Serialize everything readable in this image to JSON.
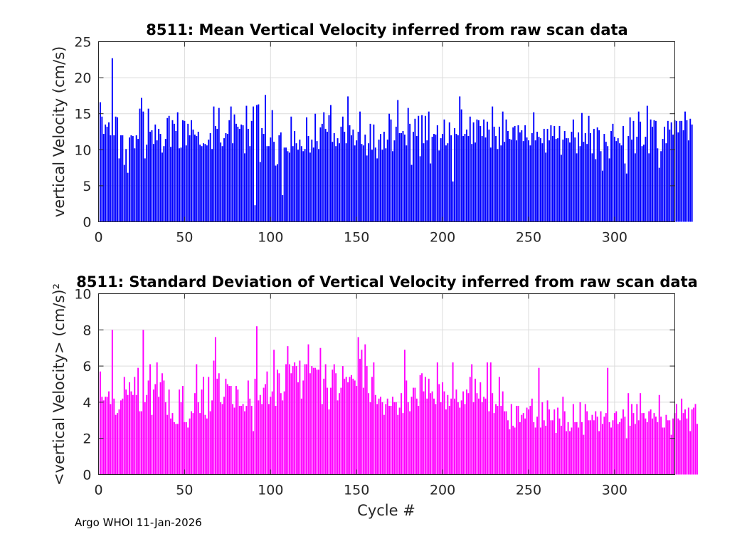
{
  "footer": "Argo WHOI 11-Jan-2026",
  "chart_data": [
    {
      "type": "bar",
      "title": "8511: Mean Vertical Velocity inferred from raw scan data",
      "xlabel": "",
      "ylabel": "vertical Velocity (cm/s)",
      "color": "#0000ff",
      "xlim": [
        0,
        335
      ],
      "ylim": [
        0,
        25
      ],
      "xticks": [
        0,
        50,
        100,
        150,
        200,
        250,
        300
      ],
      "yticks": [
        0,
        5,
        10,
        15,
        20,
        25
      ],
      "x_start": 1,
      "values": [
        16.6,
        14.6,
        12.2,
        13.5,
        13.2,
        13.8,
        12.0,
        22.7,
        12.0,
        14.6,
        14.5,
        8.8,
        12.0,
        12.0,
        7.9,
        10.1,
        6.8,
        11.7,
        12.0,
        11.9,
        10.2,
        12.0,
        11.5,
        15.7,
        17.2,
        15.3,
        8.8,
        10.7,
        15.7,
        12.5,
        12.7,
        10.8,
        13.5,
        11.3,
        12.9,
        12.2,
        9.6,
        10.5,
        11.5,
        14.4,
        14.7,
        10.4,
        14.1,
        13.6,
        12.6,
        15.2,
        10.2,
        10.3,
        14.1,
        14.0,
        10.6,
        13.6,
        12.0,
        14.1,
        12.8,
        12.1,
        11.9,
        12.5,
        10.7,
        10.5,
        10.9,
        10.8,
        10.6,
        11.4,
        12.3,
        10.1,
        16.0,
        13.3,
        12.9,
        15.8,
        11.0,
        10.5,
        11.6,
        12.3,
        12.2,
        14.1,
        16.0,
        10.9,
        14.9,
        13.6,
        13.2,
        12.9,
        13.5,
        13.4,
        9.5,
        16.1,
        12.9,
        10.5,
        14.0,
        16.0,
        2.3,
        16.2,
        16.3,
        8.3,
        13.0,
        12.2,
        17.6,
        10.5,
        10.5,
        11.7,
        15.5,
        11.1,
        7.8,
        8.0,
        12.0,
        12.4,
        3.7,
        10.3,
        10.3,
        9.8,
        9.6,
        14.6,
        10.5,
        12.6,
        10.9,
        10.0,
        11.4,
        10.5,
        9.8,
        10.1,
        14.5,
        11.9,
        9.6,
        11.4,
        10.3,
        15.0,
        11.2,
        10.1,
        13.1,
        13.6,
        15.2,
        12.9,
        12.5,
        14.8,
        16.2,
        11.1,
        12.3,
        10.5,
        11.6,
        10.9,
        13.2,
        14.6,
        12.5,
        10.9,
        17.4,
        13.4,
        12.0,
        12.8,
        10.6,
        11.3,
        12.5,
        15.3,
        10.8,
        10.6,
        12.1,
        9.2,
        10.9,
        13.6,
        10.0,
        13.5,
        10.3,
        8.8,
        11.4,
        12.2,
        10.0,
        12.5,
        10.2,
        11.4,
        15.0,
        14.2,
        9.8,
        11.3,
        13.2,
        16.9,
        12.3,
        12.3,
        12.6,
        12.1,
        10.6,
        15.8,
        13.6,
        7.9,
        12.5,
        14.3,
        11.9,
        14.7,
        9.1,
        14.8,
        10.9,
        14.7,
        11.3,
        15.3,
        8.1,
        11.8,
        12.2,
        12.1,
        13.4,
        9.9,
        11.6,
        12.2,
        14.2,
        10.6,
        10.9,
        13.8,
        12.0,
        5.6,
        13.0,
        12.2,
        12.0,
        17.4,
        15.6,
        11.9,
        12.2,
        12.8,
        11.9,
        14.6,
        10.8,
        13.8,
        11.0,
        14.2,
        14.1,
        13.3,
        11.9,
        14.2,
        11.7,
        13.9,
        12.8,
        10.3,
        16.0,
        13.2,
        11.9,
        10.1,
        13.2,
        10.6,
        15.3,
        11.1,
        14.2,
        12.6,
        11.5,
        11.4,
        13.1,
        13.3,
        11.3,
        13.4,
        12.4,
        12.7,
        11.2,
        13.4,
        11.7,
        11.3,
        10.6,
        12.3,
        15.2,
        11.3,
        12.5,
        11.8,
        11.6,
        10.9,
        12.9,
        9.6,
        12.9,
        11.3,
        13.4,
        11.9,
        13.3,
        11.5,
        11.6,
        13.3,
        9.3,
        11.4,
        12.6,
        11.6,
        11.6,
        11.0,
        12.5,
        14.2,
        11.7,
        9.5,
        12.4,
        10.5,
        15.1,
        11.1,
        12.3,
        10.8,
        14.7,
        12.3,
        9.5,
        12.9,
        8.7,
        13.1,
        12.7,
        9.8,
        7.1,
        12.2,
        11.1,
        10.5,
        8.8,
        12.6,
        13.6,
        11.8,
        11.2,
        11.6,
        10.9,
        10.6,
        13.3,
        8.1,
        6.7,
        11.9,
        14.5,
        11.4,
        14.0,
        9.5,
        11.8,
        15.3,
        13.9,
        10.5,
        10.7,
        11.8,
        16.1,
        9.5,
        14.2,
        13.2,
        14.1,
        14.0,
        10.2,
        7.5,
        9.8,
        11.5,
        13.2,
        10.9,
        14.0,
        12.8,
        13.8,
        12.1,
        14.1,
        14.0,
        12.4,
        14.0,
        14.0,
        12.7,
        15.3,
        14.1,
        11.3,
        14.3,
        13.5
      ]
    },
    {
      "type": "bar",
      "title": "8511: Standard Deviation of Vertical Velocity inferred from raw scan data",
      "xlabel": "Cycle #",
      "ylabel": "<vertical Velocity> (cm/s)²",
      "color": "#ff00ff",
      "xlim": [
        0,
        335
      ],
      "ylim": [
        0,
        10
      ],
      "xticks": [
        0,
        50,
        100,
        150,
        200,
        250,
        300
      ],
      "yticks": [
        0,
        2,
        4,
        6,
        8,
        10
      ],
      "x_start": 1,
      "values": [
        5.7,
        4.3,
        4.1,
        4.3,
        4.3,
        4.6,
        3.9,
        8.0,
        4.2,
        3.3,
        3.4,
        3.6,
        4.1,
        4.2,
        5.4,
        4.7,
        4.4,
        5.1,
        4.6,
        4.4,
        5.4,
        4.4,
        5.9,
        3.5,
        3.5,
        8.0,
        4.0,
        4.4,
        5.2,
        6.1,
        3.3,
        4.7,
        5.0,
        6.2,
        4.3,
        5.1,
        5.6,
        5.2,
        4.0,
        3.3,
        4.7,
        3.1,
        3.4,
        2.9,
        2.8,
        2.8,
        4.7,
        4.0,
        4.9,
        2.9,
        2.9,
        2.6,
        3.1,
        3.5,
        3.4,
        4.5,
        6.1,
        4.0,
        3.4,
        4.7,
        5.4,
        3.3,
        3.1,
        5.4,
        3.5,
        4.1,
        6.3,
        7.6,
        5.3,
        5.6,
        4.0,
        3.9,
        4.3,
        5.3,
        5.0,
        4.9,
        4.9,
        3.9,
        3.7,
        4.9,
        4.7,
        3.8,
        3.8,
        3.9,
        3.5,
        3.8,
        5.2,
        4.2,
        3.8,
        2.4,
        5.3,
        8.2,
        4.1,
        4.4,
        3.9,
        4.8,
        5.0,
        5.7,
        3.9,
        4.3,
        4.6,
        6.9,
        3.8,
        5.8,
        5.6,
        4.5,
        4.1,
        4.6,
        6.1,
        7.1,
        6.1,
        5.6,
        6.0,
        6.2,
        6.0,
        5.1,
        6.3,
        4.2,
        5.2,
        6.1,
        6.1,
        7.2,
        5.6,
        6.0,
        5.9,
        5.9,
        5.8,
        5.8,
        7.0,
        3.9,
        5.3,
        6.1,
        4.8,
        3.6,
        4.8,
        5.8,
        6.1,
        5.6,
        4.1,
        4.5,
        4.8,
        6.0,
        5.3,
        5.4,
        5.1,
        5.4,
        5.5,
        5.3,
        5.2,
        4.9,
        7.6,
        6.4,
        6.9,
        4.8,
        7.2,
        6.0,
        4.5,
        4.0,
        5.4,
        6.2,
        4.4,
        3.9,
        4.2,
        4.3,
        4.0,
        3.3,
        3.9,
        4.2,
        3.8,
        3.8,
        4.3,
        4.0,
        4.0,
        3.3,
        3.7,
        4.5,
        3.4,
        6.9,
        5.2,
        4.0,
        3.5,
        4.3,
        4.8,
        4.8,
        4.2,
        3.8,
        5.5,
        5.6,
        4.6,
        5.4,
        4.2,
        5.3,
        4.5,
        4.6,
        4.2,
        3.9,
        6.2,
        5.0,
        4.0,
        5.1,
        4.6,
        3.6,
        4.4,
        3.8,
        4.2,
        6.2,
        4.2,
        4.7,
        4.0,
        3.7,
        4.1,
        4.6,
        3.9,
        4.7,
        4.5,
        5.4,
        6.1,
        4.0,
        5.3,
        4.5,
        4.2,
        5.1,
        4.0,
        4.3,
        4.2,
        6.2,
        3.5,
        6.2,
        4.5,
        3.4,
        3.9,
        3.8,
        5.4,
        3.8,
        4.6,
        3.5,
        3.5,
        3.0,
        2.5,
        3.9,
        2.7,
        2.6,
        3.8,
        3.8,
        2.9,
        3.3,
        3.4,
        3.1,
        3.7,
        3.6,
        3.8,
        4.2,
        2.9,
        2.6,
        3.2,
        5.9,
        2.6,
        4.0,
        3.0,
        2.7,
        4.1,
        3.6,
        3.0,
        3.0,
        3.6,
        2.3,
        3.7,
        3.1,
        2.7,
        4.3,
        3.5,
        2.4,
        2.9,
        2.4,
        2.6,
        3.9,
        2.9,
        2.9,
        2.6,
        4.0,
        2.9,
        2.2,
        3.9,
        3.5,
        3.0,
        3.0,
        3.3,
        3.0,
        3.5,
        3.2,
        2.4,
        3.5,
        2.8,
        3.2,
        3.4,
        5.9,
        2.9,
        2.6,
        3.0,
        3.4,
        3.5,
        2.8,
        2.9,
        3.1,
        3.6,
        3.2,
        2.0,
        4.5,
        2.7,
        3.9,
        3.4,
        2.8,
        3.9,
        3.0,
        4.5,
        3.4,
        3.4,
        3.1,
        2.9,
        3.5,
        3.6,
        3.1,
        3.4,
        3.2,
        2.9,
        4.4,
        3.2,
        2.6,
        2.6,
        3.3,
        3.0,
        3.0,
        2.2,
        3.1,
        3.4,
        3.9,
        3.1,
        3.0,
        4.2,
        3.4,
        3.6,
        3.1,
        3.7,
        2.4,
        3.6,
        3.7,
        3.9,
        2.8
      ]
    }
  ]
}
